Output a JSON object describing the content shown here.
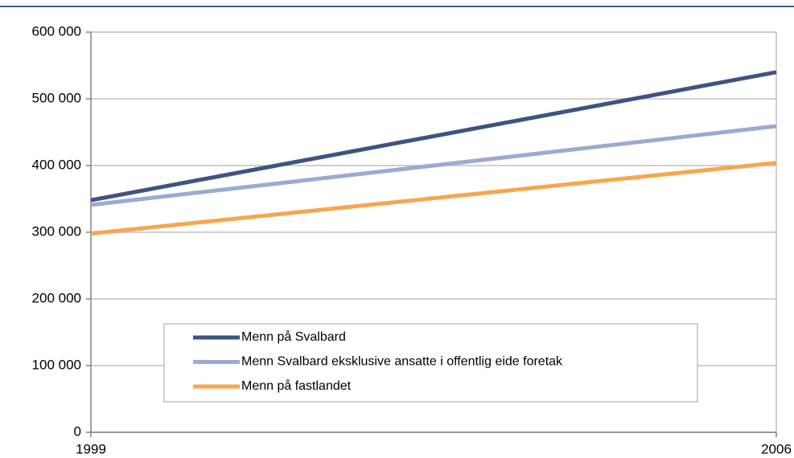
{
  "chart_data": {
    "type": "line",
    "x": [
      1999,
      2006
    ],
    "series": [
      {
        "name": "Menn på Svalbard",
        "color": "#3f5383",
        "values": [
          348000,
          540000
        ]
      },
      {
        "name": "Menn Svalbard eksklusive ansatte i offentlig eide foretak",
        "color": "#9aabd3",
        "values": [
          341000,
          459000
        ]
      },
      {
        "name": "Menn på fastlandet",
        "color": "#f9a54f",
        "values": [
          298000,
          404000
        ]
      }
    ],
    "xlim": [
      1999,
      2006
    ],
    "xticks": [
      1999,
      2006
    ],
    "ylim": [
      0,
      600000
    ],
    "yticks": [
      {
        "value": 0,
        "label": "0"
      },
      {
        "value": 100000,
        "label": "100 000"
      },
      {
        "value": 200000,
        "label": "200 000"
      },
      {
        "value": 300000,
        "label": "300 000"
      },
      {
        "value": 400000,
        "label": "400 000"
      },
      {
        "value": 500000,
        "label": "500 000"
      },
      {
        "value": 600000,
        "label": "600 000"
      }
    ],
    "grid": true
  }
}
